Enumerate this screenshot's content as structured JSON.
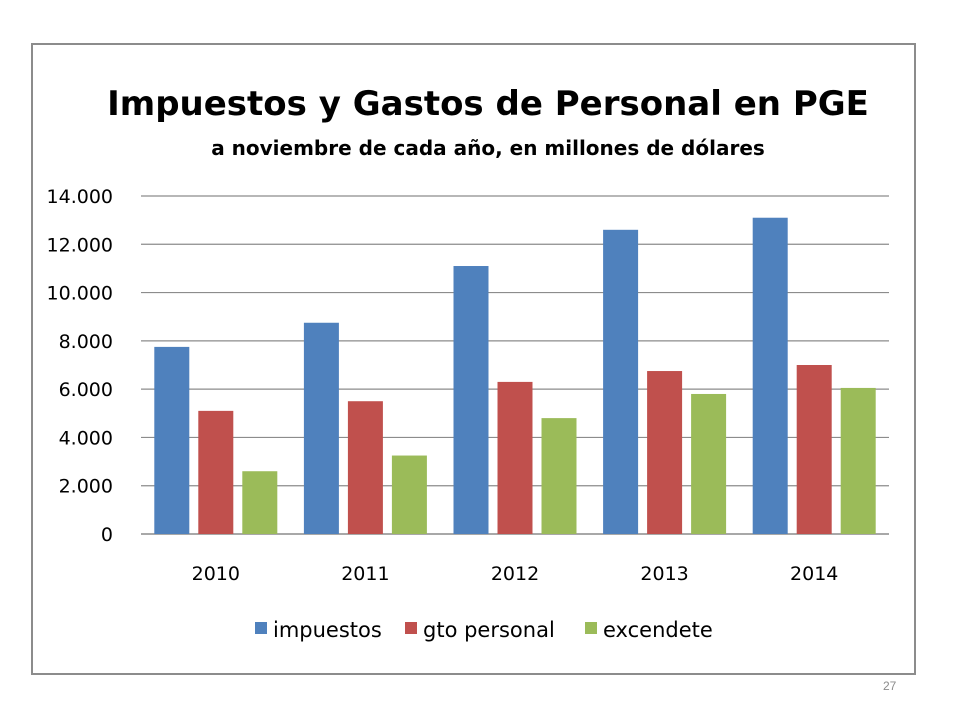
{
  "chart_data": {
    "type": "bar",
    "title": "Impuestos y Gastos de Personal en PGE",
    "subtitle": "a noviembre de cada año, en millones de dólares",
    "categories": [
      "2010",
      "2011",
      "2012",
      "2013",
      "2014"
    ],
    "series": [
      {
        "name": "impuestos",
        "color": "#4f81bd",
        "values": [
          7750,
          8750,
          11100,
          12600,
          13100
        ]
      },
      {
        "name": "gto personal",
        "color": "#c0504d",
        "values": [
          5100,
          5500,
          6300,
          6750,
          7000
        ]
      },
      {
        "name": "excendete",
        "color": "#9bbb59",
        "values": [
          2600,
          3250,
          4800,
          5800,
          6050
        ]
      }
    ],
    "ylim": [
      0,
      14000
    ],
    "yticks": [
      0,
      2000,
      4000,
      6000,
      8000,
      10000,
      12000,
      14000
    ],
    "ytick_labels": [
      "0",
      "2.000",
      "4.000",
      "6.000",
      "8.000",
      "10.000",
      "12.000",
      "14.000"
    ],
    "xlabel": "",
    "ylabel": "",
    "grid": true,
    "legend_position": "bottom"
  },
  "slide_number": "27"
}
